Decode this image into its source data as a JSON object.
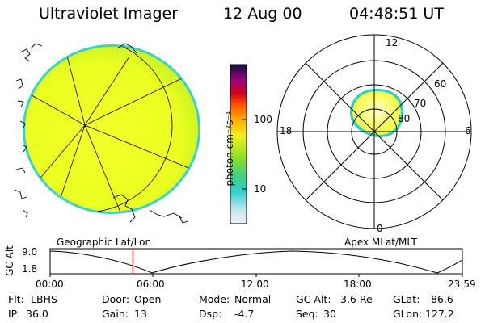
{
  "header": {
    "instrument": "Ultraviolet Imager",
    "date": "12 Aug 00",
    "time": "04:48:51 UT"
  },
  "colorbar": {
    "unit_label": "photon cm⁻²s⁻¹",
    "ticks": [
      "100",
      "10"
    ]
  },
  "polar_plot": {
    "mlt_labels": [
      "12",
      "18",
      "6",
      "0"
    ],
    "lat_labels": [
      "60",
      "70",
      "80"
    ]
  },
  "panel_titles": {
    "left": "Geographic Lat/Lon",
    "right": "Apex MLat/MLT"
  },
  "altitude_strip": {
    "axis_label": "GC Alt",
    "y_ticks": [
      "9.0",
      "1.8"
    ],
    "x_ticks": [
      "00:00",
      "06:00",
      "12:00",
      "18:00",
      "23:59"
    ],
    "marker_time": "04:48:51",
    "marker_color": "#e00000"
  },
  "info": {
    "flt_label": "Flt:",
    "flt_value": "LBHS",
    "ip_label": "IP:",
    "ip_value": "36.0",
    "door_label": "Door:",
    "door_value": "Open",
    "gain_label": "Gain:",
    "gain_value": "13",
    "mode_label": "Mode:",
    "mode_value": "Normal",
    "dsp_label": "Dsp:",
    "dsp_value": "-4.7",
    "gcalt_label": "GC Alt:",
    "gcalt_value": "3.6 Re",
    "seq_label": "Seq:",
    "seq_value": "30",
    "glat_label": "GLat:",
    "glat_value": "86.6",
    "glon_label": "GLon:",
    "glon_value": "127.2"
  }
}
